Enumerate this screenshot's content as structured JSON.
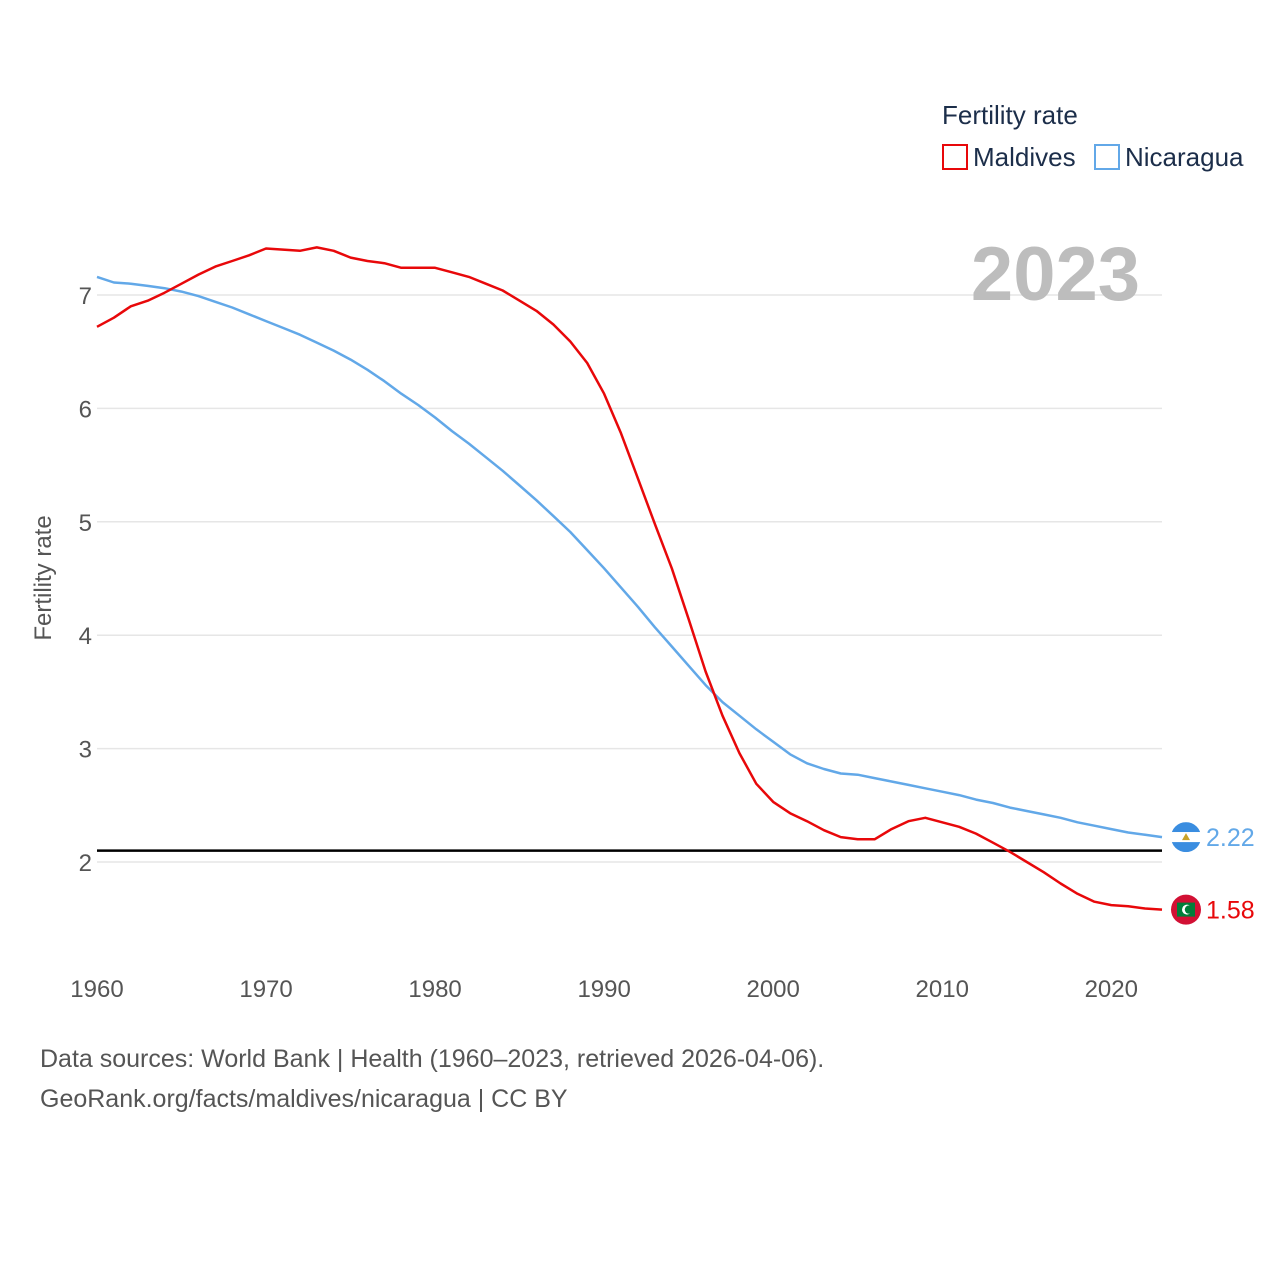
{
  "colors": {
    "maldives": "#e8080a",
    "nicaragua": "#62a8e8",
    "reference": "#000000",
    "grid": "#e6e6e6",
    "axis_text": "#555555",
    "legend_text": "#1c2e4a",
    "year_label": "#bdbdbd"
  },
  "legend": {
    "title": "Fertility rate",
    "items": [
      "Maldives",
      "Nicaragua"
    ]
  },
  "year_label": "2023",
  "end_labels": {
    "maldives": "1.58",
    "nicaragua": "2.22"
  },
  "source": {
    "line1": "Data sources: World Bank | Health (1960–2023, retrieved 2026-04-06).",
    "line2": "GeoRank.org/facts/maldives/nicaragua | CC BY"
  },
  "chart_data": {
    "type": "line",
    "title": "",
    "xlabel": "",
    "ylabel": "Fertility rate",
    "xlim": [
      1960,
      2023
    ],
    "ylim": [
      1.1,
      7.6
    ],
    "x_ticks": [
      1960,
      1970,
      1980,
      1990,
      2000,
      2010,
      2020
    ],
    "y_ticks": [
      2,
      3,
      4,
      5,
      6,
      7
    ],
    "reference_line": {
      "y": 2.1
    },
    "x": [
      1960,
      1961,
      1962,
      1963,
      1964,
      1965,
      1966,
      1967,
      1968,
      1969,
      1970,
      1971,
      1972,
      1973,
      1974,
      1975,
      1976,
      1977,
      1978,
      1979,
      1980,
      1981,
      1982,
      1983,
      1984,
      1985,
      1986,
      1987,
      1988,
      1989,
      1990,
      1991,
      1992,
      1993,
      1994,
      1995,
      1996,
      1997,
      1998,
      1999,
      2000,
      2001,
      2002,
      2003,
      2004,
      2005,
      2006,
      2007,
      2008,
      2009,
      2010,
      2011,
      2012,
      2013,
      2014,
      2015,
      2016,
      2017,
      2018,
      2019,
      2020,
      2021,
      2022,
      2023
    ],
    "series": [
      {
        "name": "Maldives",
        "values": [
          6.72,
          6.8,
          6.9,
          6.95,
          7.02,
          7.1,
          7.18,
          7.25,
          7.3,
          7.35,
          7.41,
          7.4,
          7.39,
          7.42,
          7.39,
          7.33,
          7.3,
          7.28,
          7.24,
          7.24,
          7.24,
          7.2,
          7.16,
          7.1,
          7.04,
          6.95,
          6.86,
          6.74,
          6.59,
          6.4,
          6.13,
          5.78,
          5.38,
          4.98,
          4.59,
          4.14,
          3.68,
          3.29,
          2.96,
          2.69,
          2.53,
          2.43,
          2.36,
          2.28,
          2.22,
          2.2,
          2.2,
          2.29,
          2.36,
          2.39,
          2.35,
          2.31,
          2.25,
          2.17,
          2.09,
          2.0,
          1.91,
          1.81,
          1.72,
          1.65,
          1.62,
          1.61,
          1.59,
          1.58
        ]
      },
      {
        "name": "Nicaragua",
        "values": [
          7.16,
          7.11,
          7.1,
          7.08,
          7.06,
          7.03,
          6.99,
          6.94,
          6.89,
          6.83,
          6.77,
          6.71,
          6.65,
          6.58,
          6.51,
          6.43,
          6.34,
          6.24,
          6.13,
          6.03,
          5.92,
          5.8,
          5.69,
          5.57,
          5.45,
          5.32,
          5.19,
          5.05,
          4.91,
          4.75,
          4.59,
          4.42,
          4.25,
          4.07,
          3.9,
          3.73,
          3.56,
          3.41,
          3.29,
          3.17,
          3.06,
          2.95,
          2.87,
          2.82,
          2.78,
          2.77,
          2.74,
          2.71,
          2.68,
          2.65,
          2.62,
          2.59,
          2.55,
          2.52,
          2.48,
          2.45,
          2.42,
          2.39,
          2.35,
          2.32,
          2.29,
          2.26,
          2.24,
          2.22
        ]
      }
    ]
  }
}
